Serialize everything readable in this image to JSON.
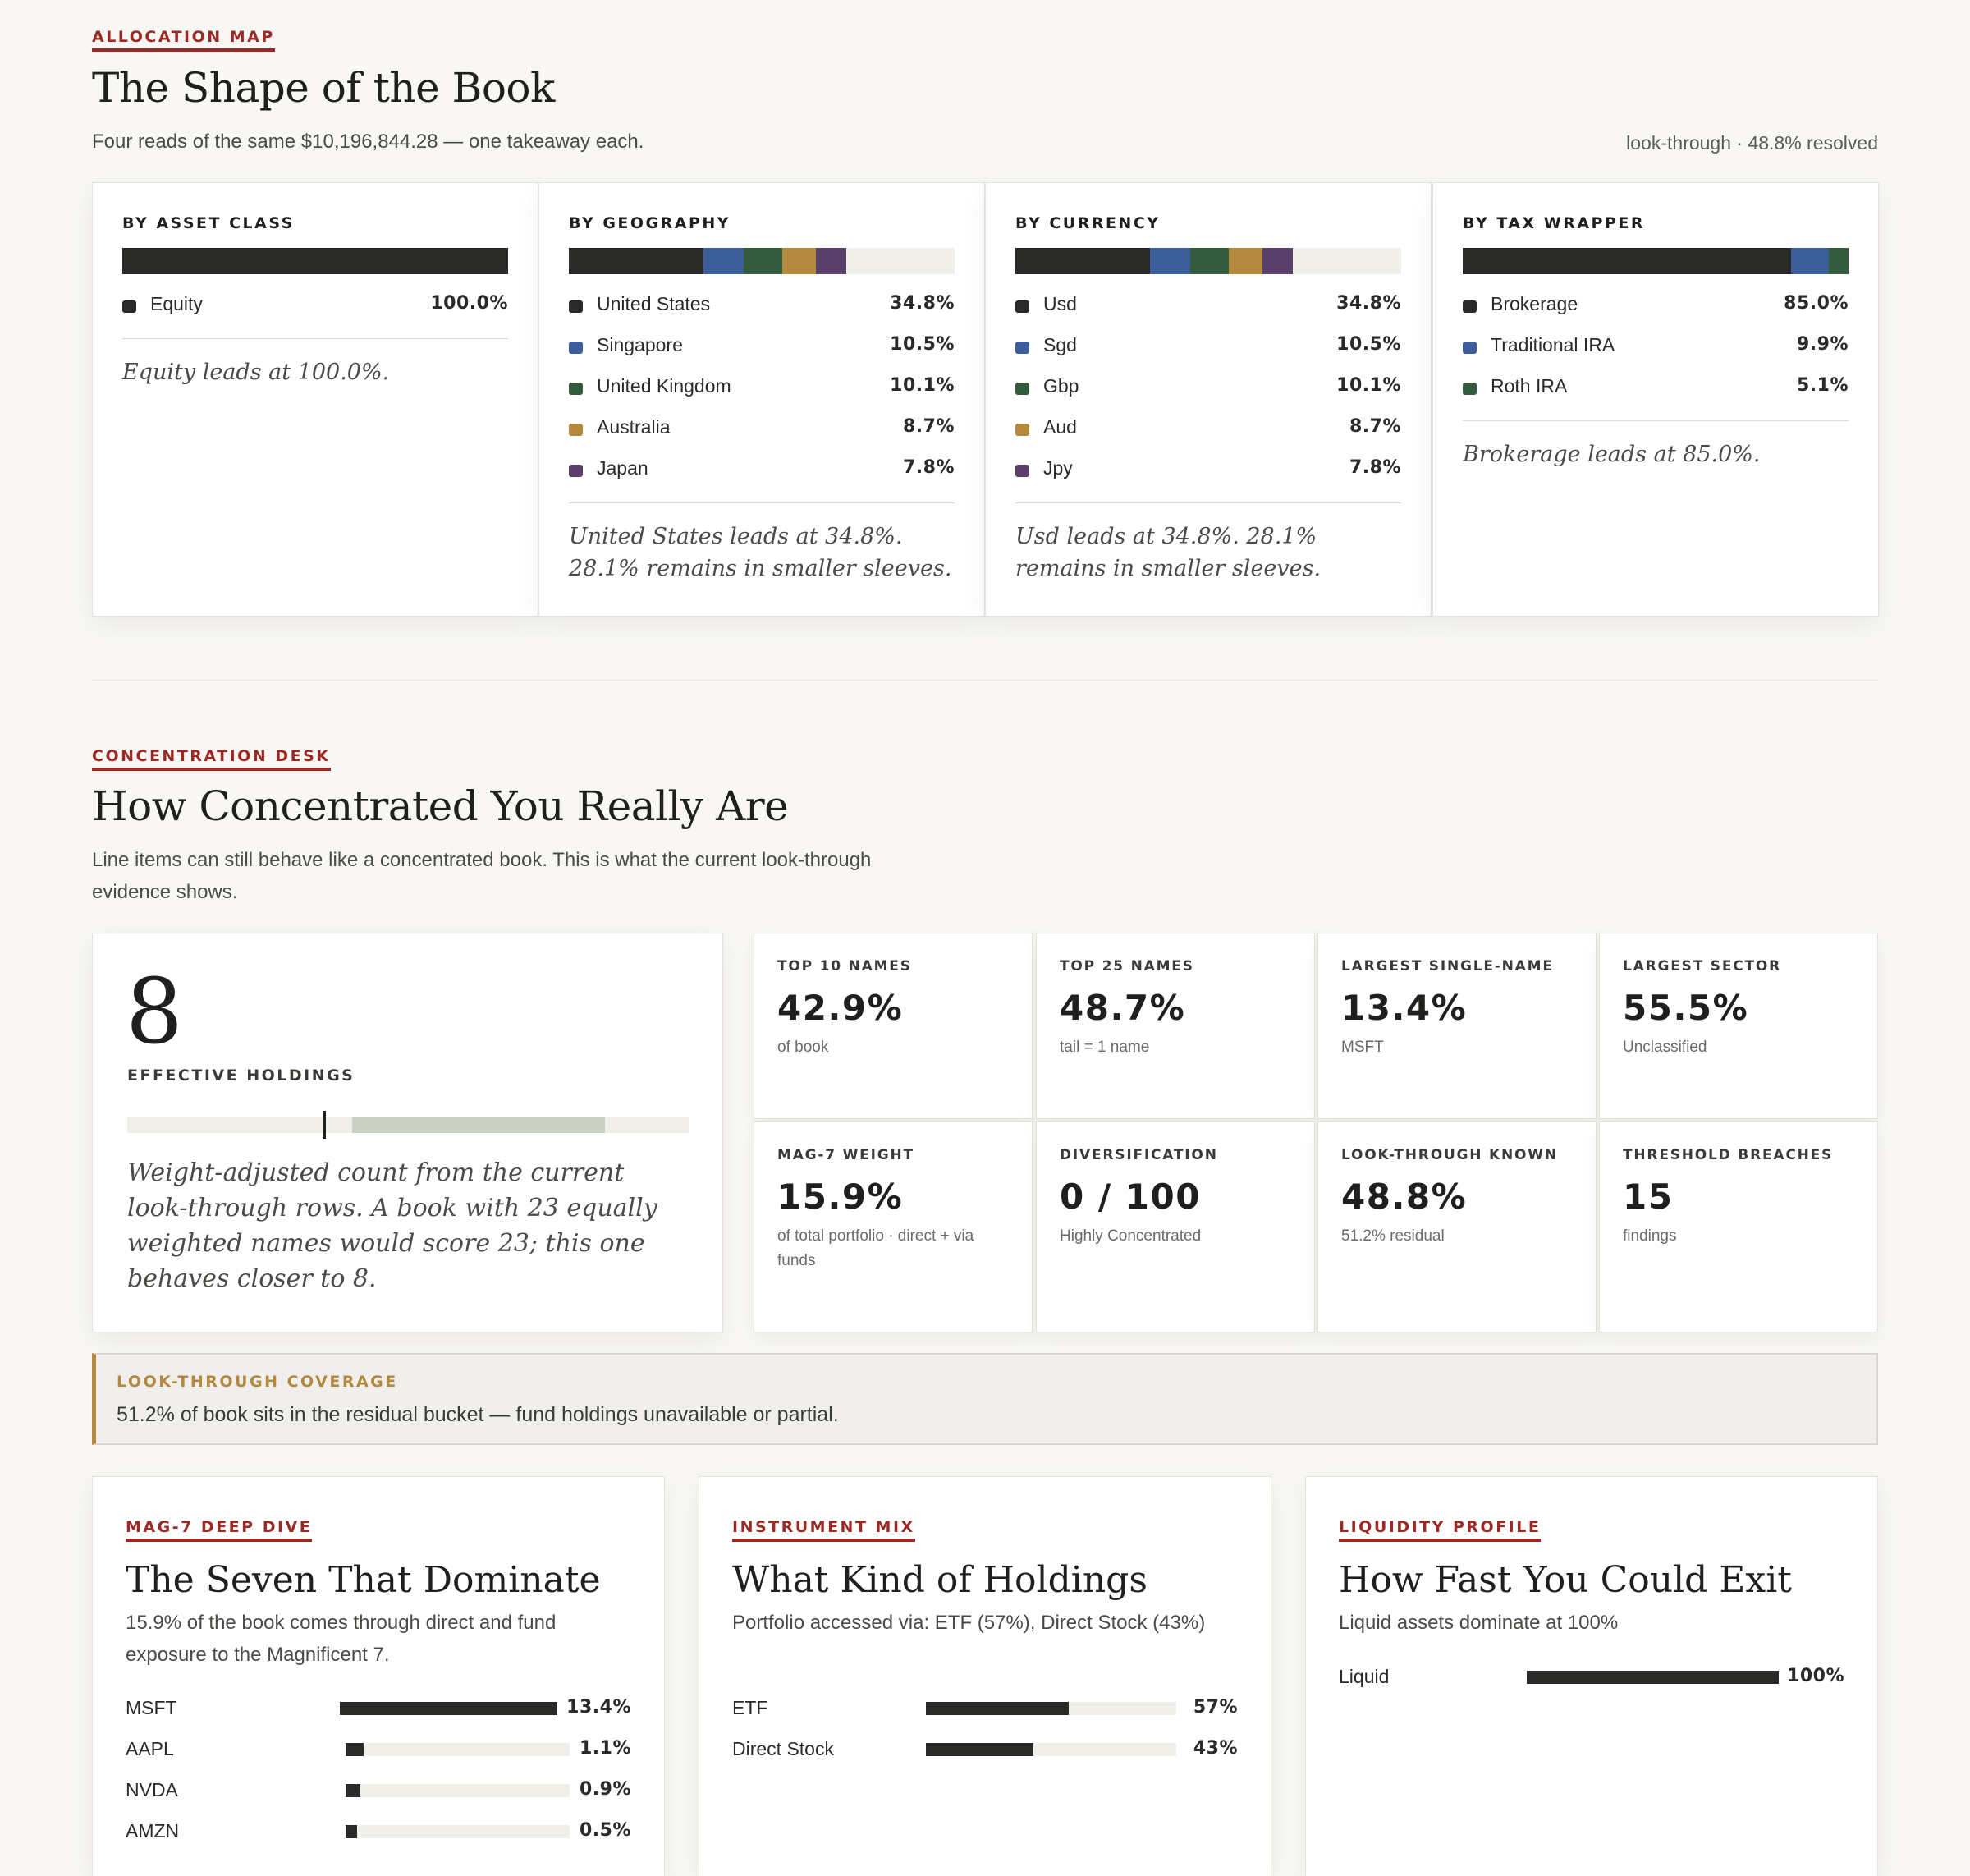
{
  "allocation": {
    "eyebrow": "ALLOCATION MAP",
    "title": "The Shape of the Book",
    "subtitle": "Four reads of the same $10,196,844.28 — one takeaway each.",
    "meta": "look-through · 48.8% resolved",
    "colors": {
      "dark": "#2a2a28",
      "blue": "#3d5c9a",
      "green": "#345a3e",
      "gold": "#b3883f",
      "purple": "#5a3f6a",
      "rest": "#f0efea"
    },
    "cards": [
      {
        "title": "BY ASSET CLASS",
        "items": [
          {
            "name": "Equity",
            "pct": "100.0%",
            "value": 100.0,
            "color": "#2a2a28"
          }
        ],
        "note": "Equity leads at 100.0%."
      },
      {
        "title": "BY GEOGRAPHY",
        "items": [
          {
            "name": "United States",
            "pct": "34.8%",
            "value": 34.8,
            "color": "#2a2a28"
          },
          {
            "name": "Singapore",
            "pct": "10.5%",
            "value": 10.5,
            "color": "#3d5c9a"
          },
          {
            "name": "United Kingdom",
            "pct": "10.1%",
            "value": 10.1,
            "color": "#345a3e"
          },
          {
            "name": "Australia",
            "pct": "8.7%",
            "value": 8.7,
            "color": "#b3883f"
          },
          {
            "name": "Japan",
            "pct": "7.8%",
            "value": 7.8,
            "color": "#5a3f6a"
          }
        ],
        "note": "United States leads at 34.8%. 28.1% remains in smaller sleeves."
      },
      {
        "title": "BY CURRENCY",
        "items": [
          {
            "name": "Usd",
            "pct": "34.8%",
            "value": 34.8,
            "color": "#2a2a28"
          },
          {
            "name": "Sgd",
            "pct": "10.5%",
            "value": 10.5,
            "color": "#3d5c9a"
          },
          {
            "name": "Gbp",
            "pct": "10.1%",
            "value": 10.1,
            "color": "#345a3e"
          },
          {
            "name": "Aud",
            "pct": "8.7%",
            "value": 8.7,
            "color": "#b3883f"
          },
          {
            "name": "Jpy",
            "pct": "7.8%",
            "value": 7.8,
            "color": "#5a3f6a"
          }
        ],
        "note": "Usd leads at 34.8%. 28.1% remains in smaller sleeves."
      },
      {
        "title": "BY TAX WRAPPER",
        "items": [
          {
            "name": "Brokerage",
            "pct": "85.0%",
            "value": 85.0,
            "color": "#2a2a28"
          },
          {
            "name": "Traditional IRA",
            "pct": "9.9%",
            "value": 9.9,
            "color": "#3d5c9a"
          },
          {
            "name": "Roth IRA",
            "pct": "5.1%",
            "value": 5.1,
            "color": "#345a3e"
          }
        ],
        "note": "Brokerage leads at 85.0%."
      }
    ]
  },
  "concentration": {
    "eyebrow": "CONCENTRATION DESK",
    "title": "How Concentrated You Really Are",
    "subtitle": "Line items can still behave like a concentrated book. This is what the current look-through evidence shows.",
    "effective": {
      "value": "8",
      "label": "EFFECTIVE HOLDINGS",
      "marker_fraction": 0.35,
      "range_fraction": [
        0.4,
        0.85
      ],
      "note": "Weight-adjusted count from the current look-through rows. A book with 23 equally weighted names would score 23; this one behaves closer to 8."
    },
    "kpis": [
      {
        "label": "TOP 10 NAMES",
        "value": "42.9%",
        "sub": "of book"
      },
      {
        "label": "TOP 25 NAMES",
        "value": "48.7%",
        "sub": "tail = 1 name"
      },
      {
        "label": "LARGEST SINGLE-NAME",
        "value": "13.4%",
        "sub": "MSFT"
      },
      {
        "label": "LARGEST SECTOR",
        "value": "55.5%",
        "sub": "Unclassified"
      },
      {
        "label": "MAG-7 WEIGHT",
        "value": "15.9%",
        "sub": "of total portfolio · direct + via funds"
      },
      {
        "label": "DIVERSIFICATION",
        "value": "0 / 100",
        "sub": "Highly Concentrated"
      },
      {
        "label": "LOOK-THROUGH KNOWN",
        "value": "48.8%",
        "sub": "51.2% residual"
      },
      {
        "label": "THRESHOLD BREACHES",
        "value": "15",
        "sub": "findings"
      }
    ],
    "coverage": {
      "label": "LOOK-THROUGH COVERAGE",
      "text": "51.2% of book sits in the residual bucket — fund holdings unavailable or partial."
    }
  },
  "panels": [
    {
      "eyebrow": "MAG-7 DEEP DIVE",
      "title": "The Seven That Dominate",
      "subtitle": "15.9% of the book comes through direct and fund exposure to the Magnificent 7.",
      "rows": [
        {
          "name": "MSFT",
          "pct": "13.4%",
          "value": 13.4
        },
        {
          "name": "AAPL",
          "pct": "1.1%",
          "value": 1.1
        },
        {
          "name": "NVDA",
          "pct": "0.9%",
          "value": 0.9
        },
        {
          "name": "AMZN",
          "pct": "0.5%",
          "value": 0.5
        }
      ]
    },
    {
      "eyebrow": "INSTRUMENT MIX",
      "title": "What Kind of Holdings",
      "subtitle": "Portfolio accessed via: ETF (57%), Direct Stock (43%)",
      "rows": [
        {
          "name": "ETF",
          "pct": "57%",
          "value": 57
        },
        {
          "name": "Direct Stock",
          "pct": "43%",
          "value": 43
        }
      ]
    },
    {
      "eyebrow": "LIQUIDITY PROFILE",
      "title": "How Fast You Could Exit",
      "subtitle": "Liquid assets dominate at 100%",
      "rows": [
        {
          "name": "Liquid",
          "pct": "100%",
          "value": 100
        }
      ]
    }
  ]
}
